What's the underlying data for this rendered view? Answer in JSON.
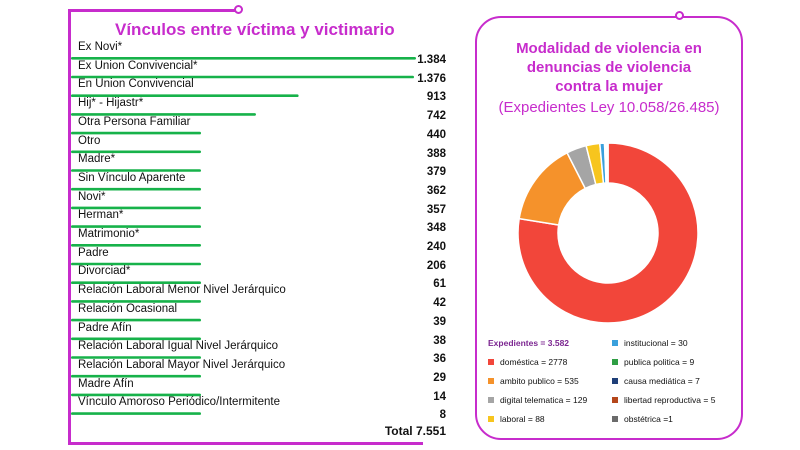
{
  "left_chart": {
    "title": "Vínculos entre víctima y victimario",
    "total_label": "Total 7.551",
    "bar_color": "#17b24a"
  },
  "right_panel": {
    "title_line1": "Modalidad de violencia en",
    "title_line2": "denuncias de violencia",
    "title_line3": "contra la mujer",
    "subtitle": "(Expedientes Ley 10.058/26.485)",
    "expedientes_total": "Expedientes = 3.582"
  },
  "chart_data": [
    {
      "type": "bar",
      "orientation": "horizontal",
      "title": "Vínculos entre víctima y victimario",
      "categories": [
        "Ex Novi*",
        "Ex Union Convivencial*",
        "En Union Convivencial",
        "Hij* - Hijastr*",
        "Otra Persona Familiar",
        "Otro",
        "Madre*",
        "Sin Vínculo Aparente",
        "Novi*",
        "Herman*",
        "Matrimonio*",
        "Padre",
        "Divorciad*",
        "Relación Laboral Menor Nivel Jerárquico",
        "Relación Ocasional",
        "Padre Afín",
        "Relación Laboral Igual Nivel Jerárquico",
        "Relación Laboral Mayor Nivel Jerárquico",
        "Madre Afín",
        "Vínculo Amoroso Periódico/Intermitente"
      ],
      "values": [
        1384,
        1376,
        913,
        742,
        440,
        388,
        379,
        362,
        357,
        348,
        240,
        206,
        61,
        42,
        39,
        38,
        36,
        29,
        14,
        8
      ],
      "value_labels": [
        "1.384",
        "1.376",
        "913",
        "742",
        "440",
        "388",
        "379",
        "362",
        "357",
        "348",
        "240",
        "206",
        "61",
        "42",
        "39",
        "38",
        "36",
        "29",
        "14",
        "8"
      ],
      "total": 7551
    },
    {
      "type": "pie",
      "title": "Modalidad de violencia en denuncias de violencia contra la mujer",
      "labels": [
        "doméstica",
        "ambito publico",
        "digital telematica",
        "laboral",
        "institucional",
        "publica politica",
        "causa mediática",
        "libertad reproductiva",
        "obstétrica"
      ],
      "values": [
        2778,
        535,
        129,
        88,
        30,
        9,
        7,
        5,
        1
      ],
      "legend_text": [
        "doméstica = 2778",
        "ambito publico = 535",
        "digital telematica = 129",
        "laboral = 88",
        "institucional = 30",
        "publica politica = 9",
        "causa mediática = 7",
        "libertad reproductiva = 5",
        "obstétrica =1"
      ],
      "colors": [
        "#f2463a",
        "#f5922b",
        "#a5a5a5",
        "#f7c51e",
        "#3aa0dc",
        "#2f9e44",
        "#1f3f78",
        "#b5471b",
        "#6b6b6b"
      ],
      "total": 3582
    }
  ]
}
